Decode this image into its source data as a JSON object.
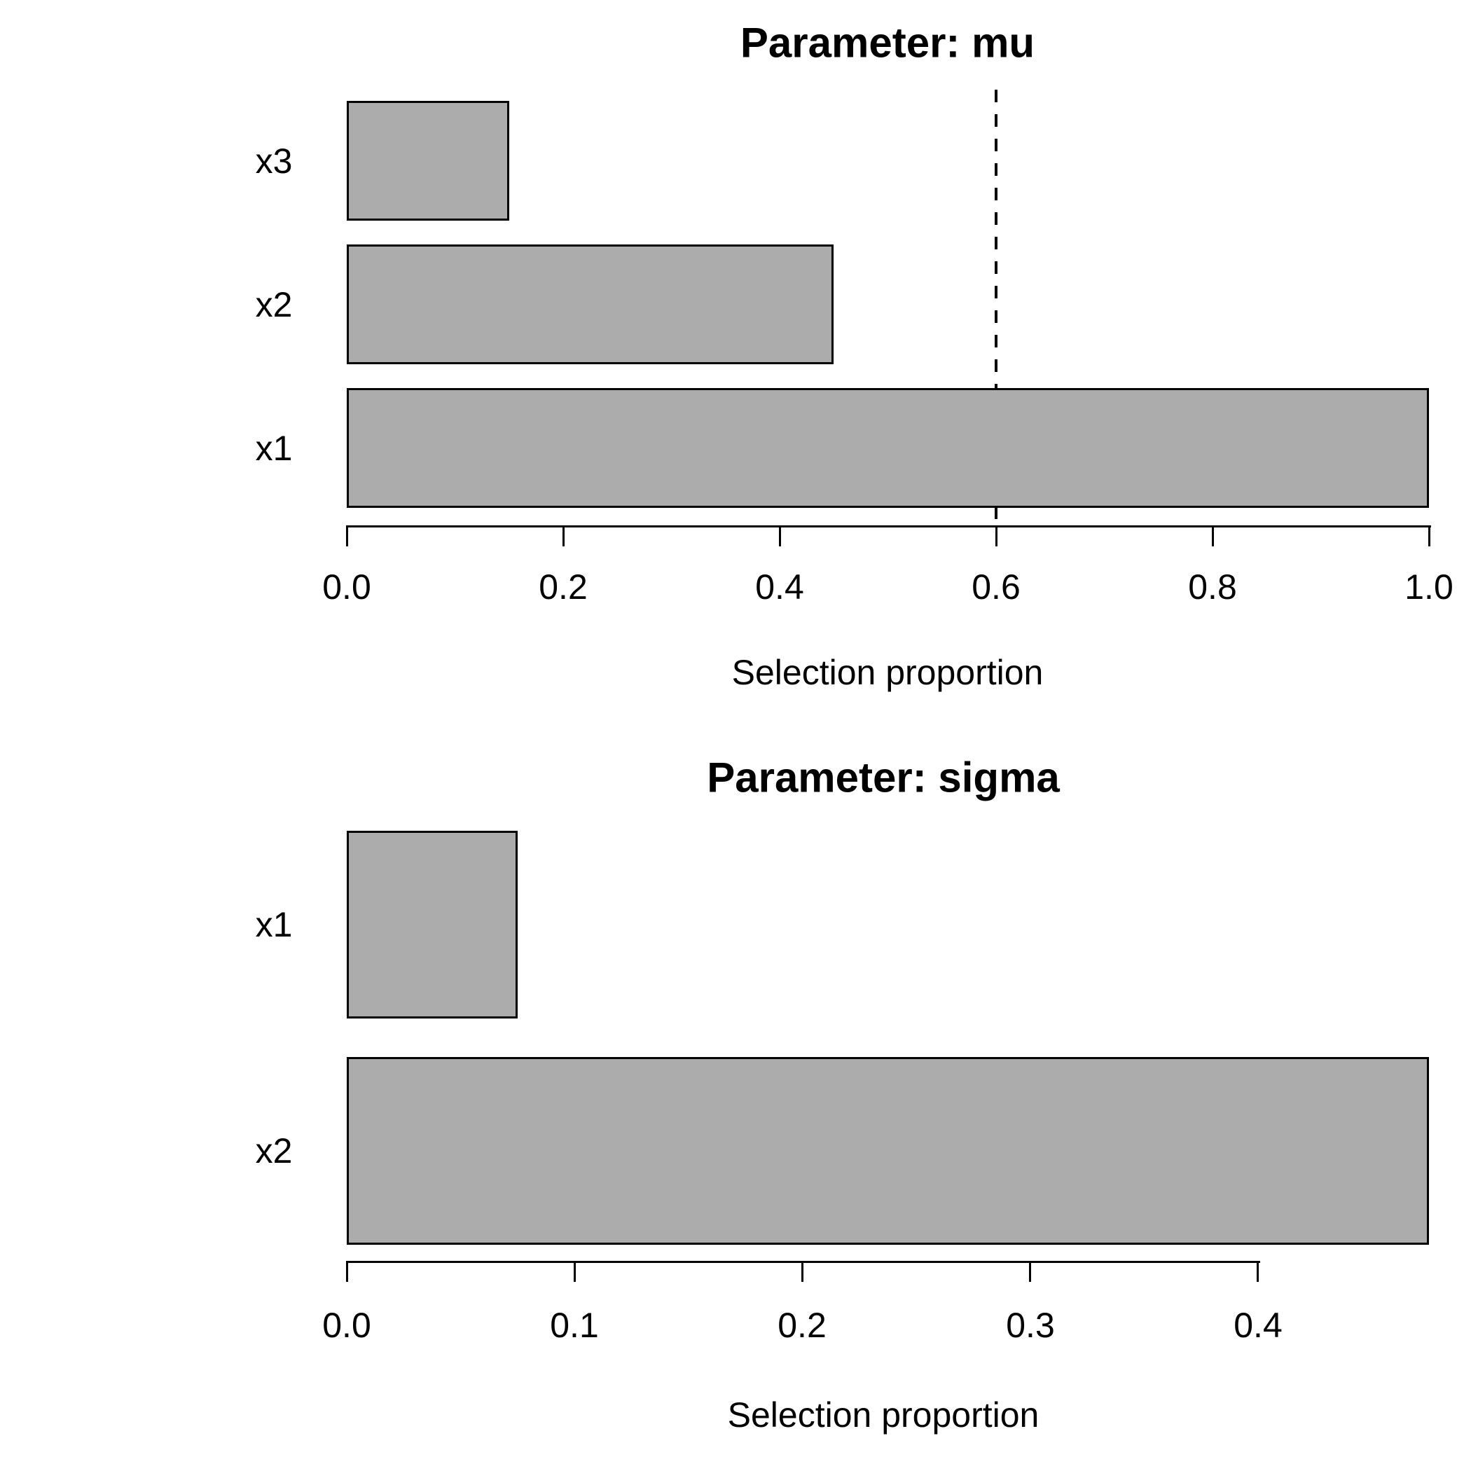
{
  "figure": {
    "background": "#ffffff",
    "bar_fill": "#acacac",
    "bar_border": "#000000",
    "text_color": "#000000"
  },
  "chart_data": [
    {
      "type": "bar",
      "orientation": "horizontal",
      "title": "Parameter: mu",
      "xlabel": "Selection proportion",
      "categories": [
        "x3",
        "x2",
        "x1"
      ],
      "values": [
        0.15,
        0.45,
        1.0
      ],
      "xlim": [
        0,
        1.0
      ],
      "xticks": [
        0.0,
        0.2,
        0.4,
        0.6,
        0.8,
        1.0
      ],
      "xtick_labels": [
        "0.0",
        "0.2",
        "0.4",
        "0.6",
        "0.8",
        "1.0"
      ],
      "threshold_line": {
        "value": 0.6,
        "style": "dashed"
      },
      "grid": false,
      "legend": false
    },
    {
      "type": "bar",
      "orientation": "horizontal",
      "title": "Parameter: sigma",
      "xlabel": "Selection proportion",
      "categories": [
        "x1",
        "x2"
      ],
      "values": [
        0.075,
        0.475
      ],
      "xlim": [
        0,
        0.4755
      ],
      "xticks": [
        0.0,
        0.1,
        0.2,
        0.3,
        0.4
      ],
      "xtick_labels": [
        "0.0",
        "0.1",
        "0.2",
        "0.3",
        "0.4"
      ],
      "threshold_line": null,
      "grid": false,
      "legend": false
    }
  ]
}
